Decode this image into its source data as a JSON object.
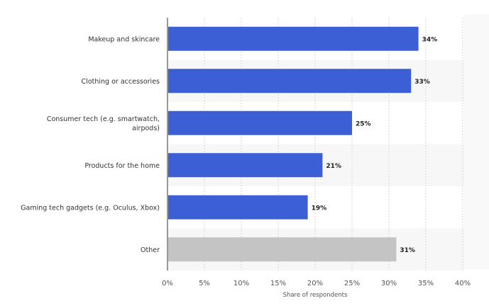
{
  "chart_data": {
    "type": "bar",
    "orientation": "horizontal",
    "categories": [
      "Makeup and skincare",
      "Clothing or accessories",
      "Consumer tech (e.g. smartwatch, airpods)",
      "Products for the home",
      "Gaming tech gadgets (e.g. Oculus, Xbox)",
      "Other"
    ],
    "category_lines": [
      [
        "Makeup and skincare"
      ],
      [
        "Clothing or accessories"
      ],
      [
        "Consumer tech (e.g. smartwatch,",
        "airpods)"
      ],
      [
        "Products for the home"
      ],
      [
        "Gaming tech gadgets (e.g. Oculus, Xbox)"
      ],
      [
        "Other"
      ]
    ],
    "values": [
      34,
      33,
      25,
      21,
      19,
      31
    ],
    "value_labels": [
      "34%",
      "33%",
      "25%",
      "21%",
      "19%",
      "31%"
    ],
    "bar_colors": [
      "#3d5fd6",
      "#3d5fd6",
      "#3d5fd6",
      "#3d5fd6",
      "#3d5fd6",
      "#c4c4c4"
    ],
    "xlim": [
      0,
      40
    ],
    "xticks": [
      0,
      5,
      10,
      15,
      20,
      25,
      30,
      35,
      40
    ],
    "xtick_labels": [
      "0%",
      "5%",
      "10%",
      "15%",
      "20%",
      "25%",
      "30%",
      "35%",
      "40%"
    ],
    "xlabel": "Share of respondents",
    "ylabel": "",
    "title": "",
    "grid": true
  },
  "colors": {
    "primary_bar": "#3d5fd6",
    "other_bar": "#c4c4c4",
    "band_alt": "#f7f7f7",
    "grid": "#d6d6d6",
    "axis": "#333333"
  }
}
